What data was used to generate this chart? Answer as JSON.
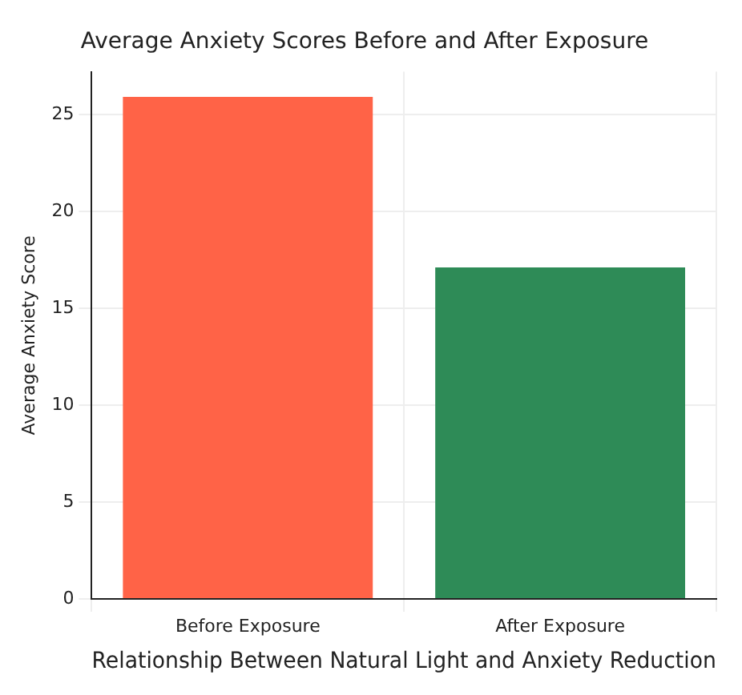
{
  "chart_data": {
    "type": "bar",
    "title": "Average Anxiety Scores Before and After Exposure",
    "xlabel": "Relationship Between Natural Light and Anxiety Reduction",
    "ylabel": "Average Anxiety Score",
    "categories": [
      "Before Exposure",
      "After Exposure"
    ],
    "values": [
      25.9,
      17.1
    ],
    "colors": [
      "#ff6347",
      "#2e8b57"
    ],
    "ylim": [
      0,
      27.2
    ],
    "yticks": [
      0,
      5,
      10,
      15,
      20,
      25
    ],
    "grid": true,
    "legend": false
  }
}
